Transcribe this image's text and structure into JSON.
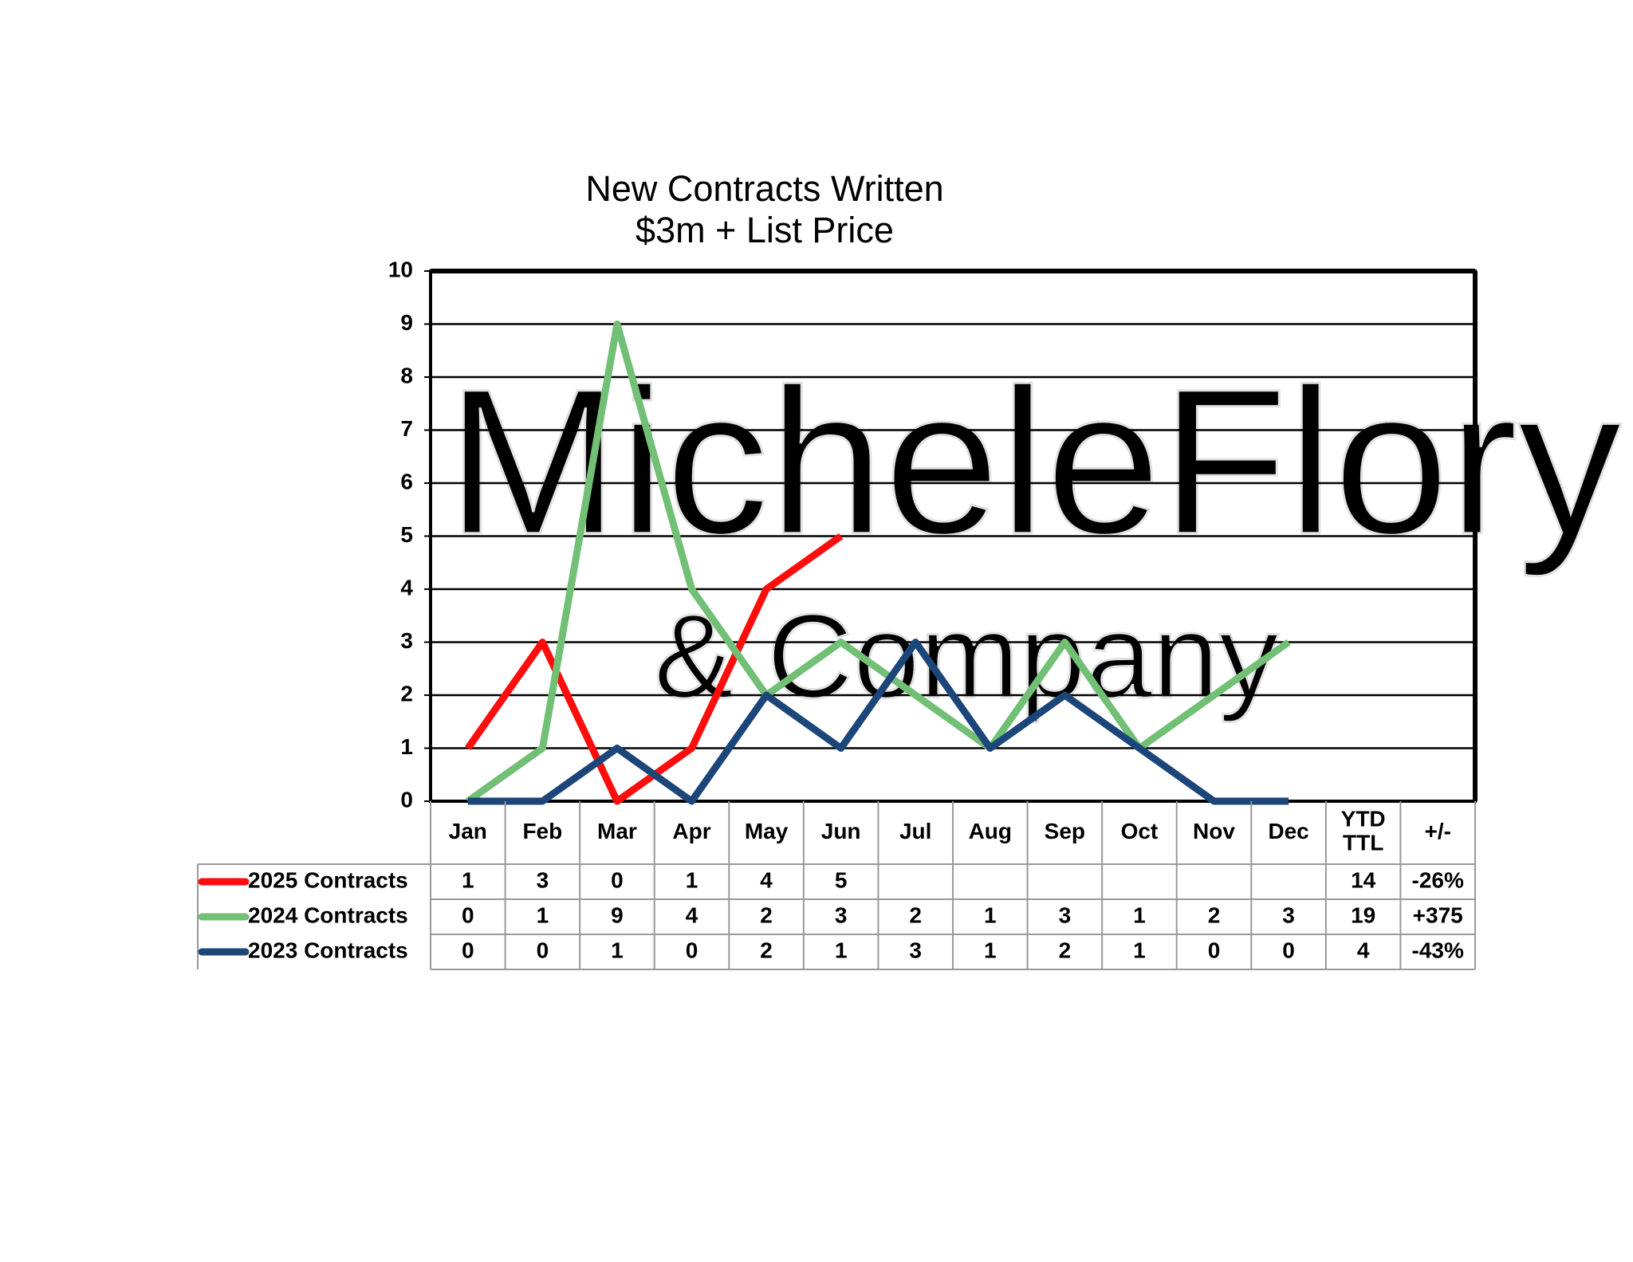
{
  "chart_data": {
    "type": "line",
    "title": "New Contracts Written",
    "subtitle": "$3m + List Price",
    "watermark": [
      "MicheleFlory",
      "& Company"
    ],
    "categories": [
      "Jan",
      "Feb",
      "Mar",
      "Apr",
      "May",
      "Jun",
      "Jul",
      "Aug",
      "Sep",
      "Oct",
      "Nov",
      "Dec"
    ],
    "series": [
      {
        "name": "2025 Contracts",
        "color": "#ff0d0d",
        "values": [
          1,
          3,
          0,
          1,
          4,
          5,
          null,
          null,
          null,
          null,
          null,
          null
        ]
      },
      {
        "name": "2024 Contracts",
        "color": "#72bf76",
        "values": [
          0,
          1,
          9,
          4,
          2,
          3,
          2,
          1,
          3,
          1,
          2,
          3
        ]
      },
      {
        "name": "2023 Contracts",
        "color": "#1c4679",
        "values": [
          0,
          0,
          1,
          0,
          2,
          1,
          3,
          1,
          2,
          1,
          0,
          0
        ]
      }
    ],
    "ylim": [
      0,
      10
    ],
    "yticks": [
      0,
      1,
      2,
      3,
      4,
      5,
      6,
      7,
      8,
      9,
      10
    ],
    "grid": true,
    "summary_columns": [
      "YTD TTL",
      "+/-"
    ],
    "summary_rows": [
      [
        14,
        "-26%"
      ],
      [
        19,
        "+375"
      ],
      [
        4,
        "-43%"
      ]
    ]
  }
}
